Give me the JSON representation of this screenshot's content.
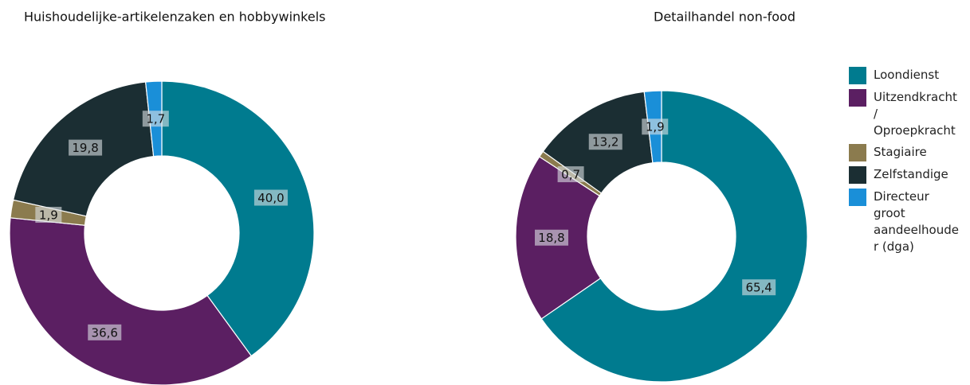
{
  "chart_data": [
    {
      "type": "pie",
      "title": "Huishoudelijke-artikelenzaken en hobbywinkels",
      "categories": [
        "Loondienst",
        "Uitzendkracht / Oproepkracht",
        "Stagiaire",
        "Zelfstandige",
        "Directeur groot aandeelhouder (dga)"
      ],
      "values": [
        40.0,
        36.6,
        1.9,
        19.8,
        1.7
      ],
      "value_labels": [
        "40,0",
        "36,6",
        "1,9",
        "19,8",
        "1,7"
      ],
      "colors": [
        "#007b8f",
        "#5b1f62",
        "#8b7b4e",
        "#1b2e33",
        "#1a8fd8"
      ]
    },
    {
      "type": "pie",
      "title": "Detailhandel non-food",
      "categories": [
        "Loondienst",
        "Uitzendkracht / Oproepkracht",
        "Stagiaire",
        "Zelfstandige",
        "Directeur groot aandeelhouder (dga)"
      ],
      "values": [
        65.4,
        18.8,
        0.7,
        13.2,
        1.9
      ],
      "value_labels": [
        "65,4",
        "18,8",
        "0,7",
        "13,2",
        "1,9"
      ],
      "colors": [
        "#007b8f",
        "#5b1f62",
        "#8b7b4e",
        "#1b2e33",
        "#1a8fd8"
      ],
      "legend": "right"
    }
  ]
}
